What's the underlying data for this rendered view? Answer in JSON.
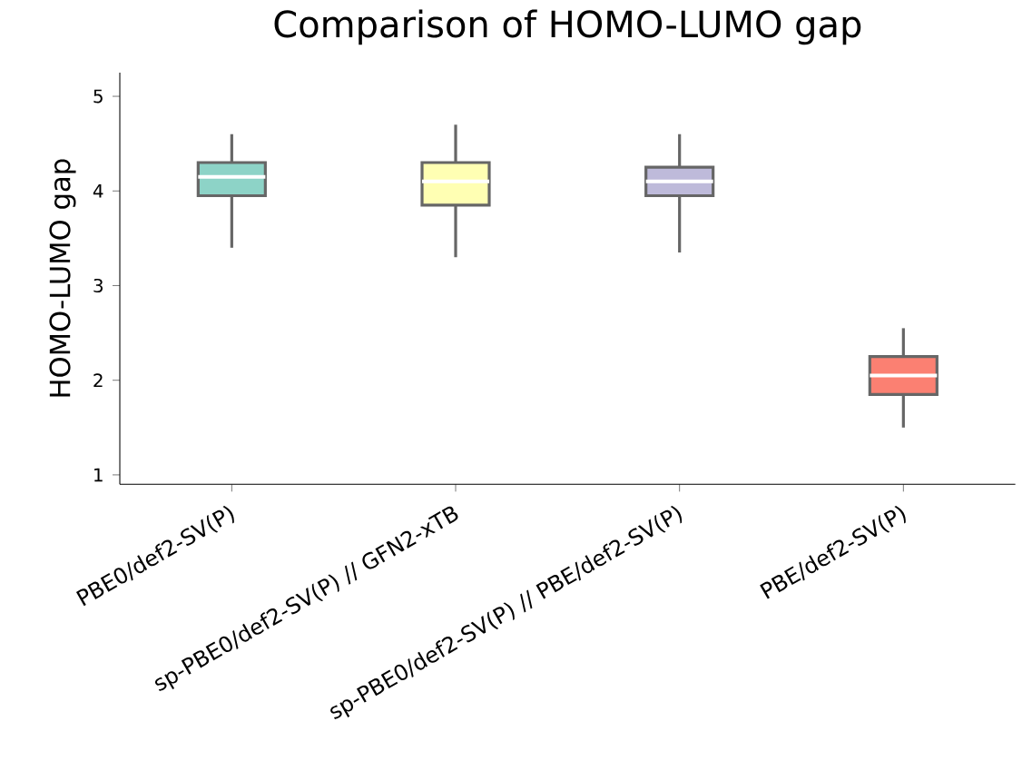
{
  "chart_data": {
    "type": "box",
    "title": "Comparison of HOMO-LUMO gap",
    "ylabel": "HOMO-LUMO gap",
    "categories": [
      "PBE0/def2-SV(P)",
      "sp-PBE0/def2-SV(P) // GFN2-xTB",
      "sp-PBE0/def2-SV(P) // PBE/def2-SV(P)",
      "PBE/def2-SV(P)"
    ],
    "boxes": [
      {
        "low": 3.4,
        "q1": 3.95,
        "median": 4.15,
        "q3": 4.3,
        "high": 4.6
      },
      {
        "low": 3.3,
        "q1": 3.85,
        "median": 4.1,
        "q3": 4.3,
        "high": 4.7
      },
      {
        "low": 3.35,
        "q1": 3.95,
        "median": 4.1,
        "q3": 4.25,
        "high": 4.6
      },
      {
        "low": 1.5,
        "q1": 1.85,
        "median": 2.05,
        "q3": 2.25,
        "high": 2.55
      }
    ],
    "colors": [
      "#8dd3c7",
      "#ffffb3",
      "#bebada",
      "#fb8072"
    ],
    "ylim": [
      0.9,
      5.25
    ],
    "yticks": [
      1,
      2,
      3,
      4,
      5
    ]
  }
}
